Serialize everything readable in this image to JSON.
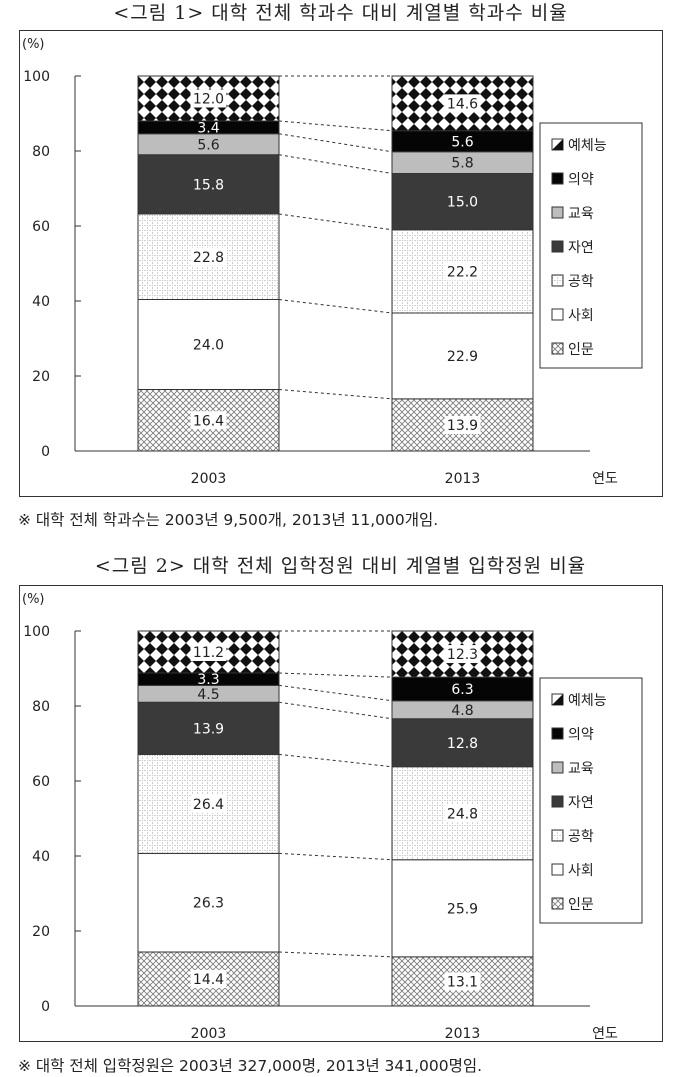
{
  "charts": [
    {
      "title": "<그림 1> 대학 전체 학과수 대비 계열별 학과수 비율",
      "note": "※ 대학 전체 학과수는 2003년 9,500개, 2013년 11,000개임."
    },
    {
      "title": "<그림 2> 대학 전체 입학정원 대비 계열별 입학정원 비율",
      "note": "※ 대학 전체 입학정원은 2003년 327,000명, 2013년 341,000명임."
    }
  ],
  "colors": {
    "humanities": "#c8c8c8",
    "social": "#ffffff",
    "engineering": "#e8e8e8",
    "natural": "#3a3a3a",
    "education": "#bdbdbd",
    "medicine": "#050505",
    "arts": "#111111"
  },
  "chart_data": [
    {
      "type": "bar",
      "stacked": true,
      "title": "<그림 1> 대학 전체 학과수 대비 계열별 학과수 비율",
      "ylabel": "(%)",
      "xlabel": "연도",
      "categories": [
        "2003",
        "2013"
      ],
      "ylim": [
        0,
        100
      ],
      "yticks": [
        0,
        20,
        40,
        60,
        80,
        100
      ],
      "legend_position": "right",
      "series": [
        {
          "name": "인문",
          "key": "humanities",
          "values": [
            16.4,
            13.9
          ]
        },
        {
          "name": "사회",
          "key": "social",
          "values": [
            24.0,
            22.9
          ]
        },
        {
          "name": "공학",
          "key": "engineering",
          "values": [
            22.8,
            22.2
          ]
        },
        {
          "name": "자연",
          "key": "natural",
          "values": [
            15.8,
            15.0
          ]
        },
        {
          "name": "교육",
          "key": "education",
          "values": [
            5.6,
            5.8
          ]
        },
        {
          "name": "의약",
          "key": "medicine",
          "values": [
            3.4,
            5.6
          ]
        },
        {
          "name": "예체능",
          "key": "arts",
          "values": [
            12.0,
            14.6
          ]
        }
      ],
      "labels": [
        [
          "16.4",
          "24.0",
          "22.8",
          "15.8",
          "5.6",
          "3.4",
          "12.0"
        ],
        [
          "13.9",
          "22.9",
          "22.2",
          "15.0",
          "5.8",
          "5.6",
          "14.6"
        ]
      ]
    },
    {
      "type": "bar",
      "stacked": true,
      "title": "<그림 2> 대학 전체 입학정원 대비 계열별 입학정원 비율",
      "ylabel": "(%)",
      "xlabel": "연도",
      "categories": [
        "2003",
        "2013"
      ],
      "ylim": [
        0,
        100
      ],
      "yticks": [
        0,
        20,
        40,
        60,
        80,
        100
      ],
      "legend_position": "right",
      "series": [
        {
          "name": "인문",
          "key": "humanities",
          "values": [
            14.4,
            13.1
          ]
        },
        {
          "name": "사회",
          "key": "social",
          "values": [
            26.3,
            25.9
          ]
        },
        {
          "name": "공학",
          "key": "engineering",
          "values": [
            26.4,
            24.8
          ]
        },
        {
          "name": "자연",
          "key": "natural",
          "values": [
            13.9,
            12.8
          ]
        },
        {
          "name": "교육",
          "key": "education",
          "values": [
            4.5,
            4.8
          ]
        },
        {
          "name": "의약",
          "key": "medicine",
          "values": [
            3.3,
            6.3
          ]
        },
        {
          "name": "예체능",
          "key": "arts",
          "values": [
            11.2,
            12.3
          ]
        }
      ],
      "labels": [
        [
          "14.4",
          "26.3",
          "26.4",
          "13.9",
          "4.5",
          "3.3",
          "11.2"
        ],
        [
          "13.1",
          "25.9",
          "24.8",
          "12.8",
          "4.8",
          "6.3",
          "12.3"
        ]
      ]
    }
  ]
}
